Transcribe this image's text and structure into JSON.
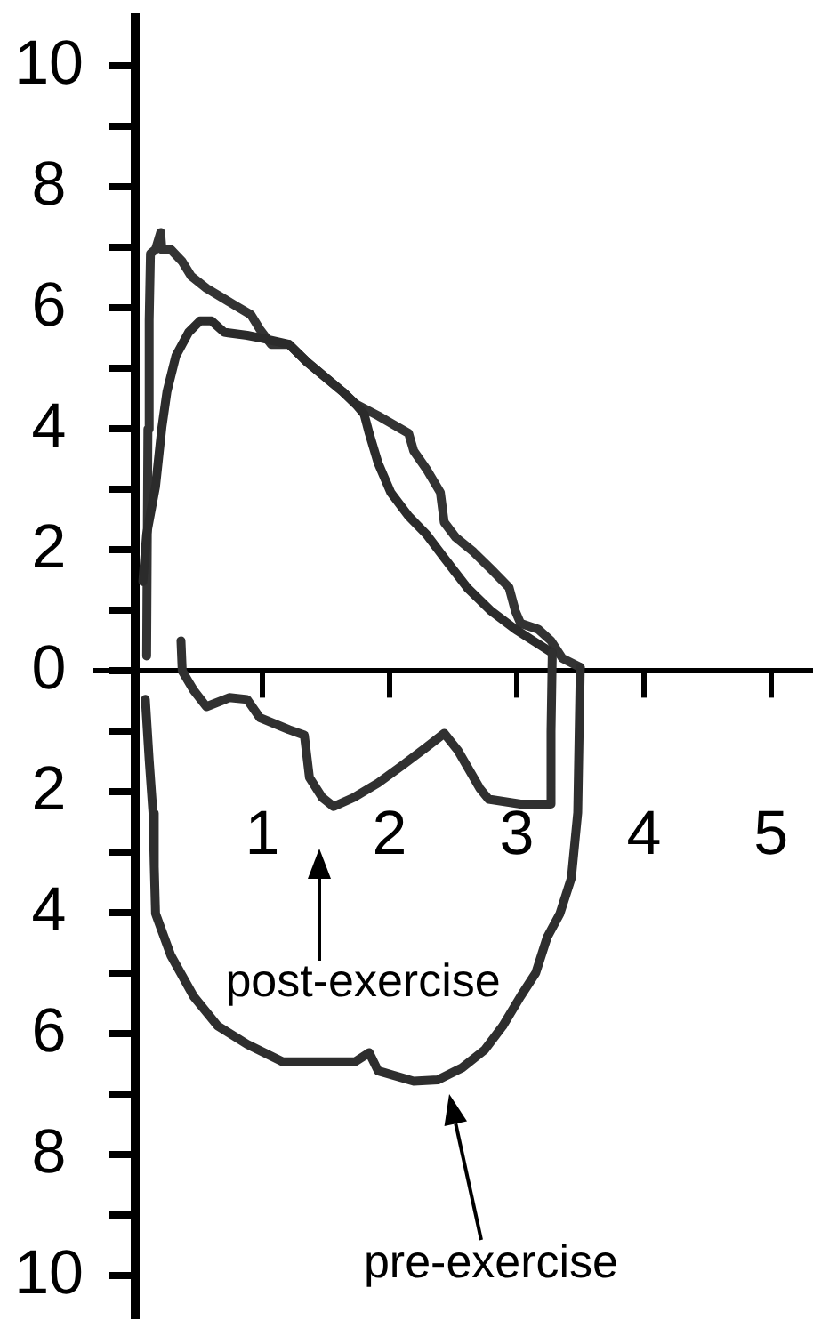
{
  "chart_data": {
    "type": "line",
    "marker": "none",
    "xlim": [
      0,
      5.33
    ],
    "ylim": [
      -10.7,
      10.8
    ],
    "xticks": [
      1,
      2,
      3,
      4,
      5
    ],
    "yticks": [
      {
        "value": -10,
        "label": "10"
      },
      {
        "value": -9,
        "label": null
      },
      {
        "value": -8,
        "label": "8"
      },
      {
        "value": -7,
        "label": null
      },
      {
        "value": -6,
        "label": "6"
      },
      {
        "value": -5,
        "label": null
      },
      {
        "value": -4,
        "label": "4"
      },
      {
        "value": -3,
        "label": null
      },
      {
        "value": -2,
        "label": "2"
      },
      {
        "value": -1,
        "label": null
      },
      0,
      {
        "value": 1,
        "label": null
      },
      2,
      {
        "value": 3,
        "label": null
      },
      4,
      {
        "value": 5,
        "label": null
      },
      6,
      {
        "value": 7,
        "label": null
      },
      8,
      {
        "value": 9,
        "label": null
      },
      10
    ],
    "series": [
      {
        "color": "#333333",
        "x": [
          0.09,
          0.1,
          0.11,
          0.12,
          0.16,
          0.2,
          0.21,
          0.28,
          0.37,
          0.44,
          0.56,
          0.79,
          0.91,
          0.98,
          1.07,
          1.21,
          1.35,
          1.63,
          1.73,
          1.91,
          2.15,
          2.19,
          2.29,
          2.4,
          2.43,
          2.52,
          2.66,
          2.8,
          2.94,
          2.99,
          3.03,
          3.17,
          3.27,
          3.36,
          3.5
        ],
        "values": [
          0.25,
          4.0,
          5.8,
          6.9,
          6.97,
          7.25,
          6.97,
          6.97,
          6.77,
          6.53,
          6.33,
          6.04,
          5.89,
          5.65,
          5.4,
          5.4,
          5.11,
          4.62,
          4.42,
          4.22,
          3.93,
          3.64,
          3.34,
          2.95,
          2.46,
          2.21,
          1.97,
          1.68,
          1.38,
          0.99,
          0.79,
          0.69,
          0.5,
          0.21,
          0.06
        ]
      },
      {
        "color": "#2e2e2e",
        "x": [
          0.08,
          0.11,
          0.14,
          0.15,
          0.16,
          0.28,
          0.46,
          0.65,
          0.88,
          1.16,
          1.73,
          1.84,
          1.91,
          2.19,
          2.38,
          2.57,
          2.75,
          2.89,
          3.03,
          3.15,
          3.24,
          3.34,
          3.43,
          3.48,
          3.5
        ],
        "values": [
          -0.47,
          -1.47,
          -2.35,
          -3.24,
          -4.01,
          -4.7,
          -5.38,
          -5.87,
          -6.17,
          -6.46,
          -6.46,
          -6.31,
          -6.61,
          -6.78,
          -6.76,
          -6.56,
          -6.26,
          -5.87,
          -5.38,
          -4.99,
          -4.4,
          -4.01,
          -3.42,
          -2.34,
          0.06
        ]
      },
      {
        "color": "#2b2b2b",
        "x": [
          0.06,
          0.09,
          0.16,
          0.21,
          0.25,
          0.32,
          0.42,
          0.51,
          0.6,
          0.7,
          0.88,
          1.0,
          1.21,
          1.35,
          1.63,
          1.73,
          1.8,
          1.84,
          1.91,
          2.01,
          2.15,
          2.29,
          2.43,
          2.61,
          2.8,
          2.99,
          3.13,
          3.28
        ],
        "values": [
          1.48,
          2.26,
          3.05,
          4.03,
          4.62,
          5.21,
          5.6,
          5.79,
          5.79,
          5.6,
          5.55,
          5.5,
          5.4,
          5.11,
          4.62,
          4.42,
          4.25,
          3.93,
          3.44,
          2.95,
          2.56,
          2.26,
          1.87,
          1.38,
          0.99,
          0.69,
          0.5,
          0.3
        ]
      },
      {
        "color": "#303030",
        "x": [
          0.36,
          0.37,
          0.46,
          0.56,
          0.74,
          0.88,
          0.98,
          1.21,
          1.33,
          1.37,
          1.47,
          1.56,
          1.72,
          1.91,
          2.1,
          2.29,
          2.43,
          2.54,
          2.71,
          2.78,
          3.03,
          3.26,
          3.27,
          3.28
        ],
        "values": [
          0.5,
          0.0,
          -0.32,
          -0.59,
          -0.44,
          -0.47,
          -0.77,
          -0.97,
          -1.06,
          -1.76,
          -2.09,
          -2.24,
          -2.09,
          -1.85,
          -1.56,
          -1.26,
          -1.03,
          -1.32,
          -1.94,
          -2.12,
          -2.2,
          -2.2,
          -1.0,
          0.3
        ]
      }
    ],
    "annotations": [
      "post-exercise",
      "pre-exercise"
    ]
  }
}
